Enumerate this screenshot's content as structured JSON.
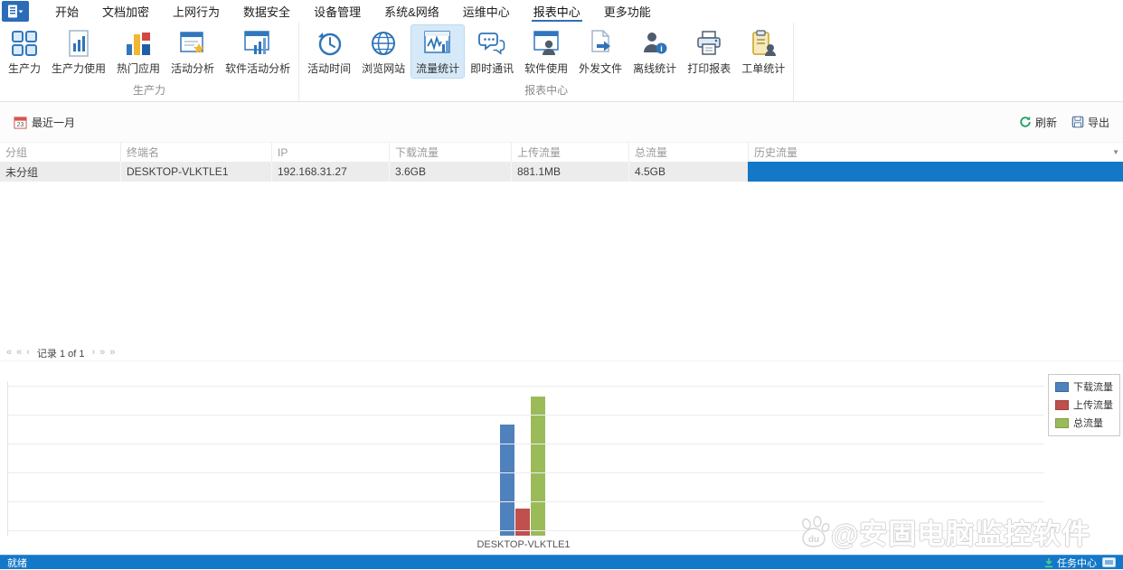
{
  "menubar": {
    "tabs": [
      "开始",
      "文档加密",
      "上网行为",
      "数据安全",
      "设备管理",
      "系统&网络",
      "运维中心",
      "报表中心",
      "更多功能"
    ],
    "active_tab": "报表中心"
  },
  "ribbon": {
    "groups": [
      {
        "label": "生产力",
        "buttons": [
          "生产力",
          "生产力使用",
          "热门应用",
          "活动分析",
          "软件活动分析"
        ]
      },
      {
        "label": "报表中心",
        "buttons": [
          "活动时间",
          "浏览网站",
          "流量统计",
          "即时通讯",
          "软件使用",
          "外发文件",
          "离线统计",
          "打印报表",
          "工单统计"
        ],
        "active_button": "流量统计"
      }
    ]
  },
  "toolbar": {
    "date_filter": "最近一月",
    "calendar_day": "23",
    "refresh_label": "刷新",
    "export_label": "导出"
  },
  "table": {
    "columns": [
      "分组",
      "终端名",
      "IP",
      "下载流量",
      "上传流量",
      "总流量",
      "历史流量"
    ],
    "rows": [
      [
        "未分组",
        "DESKTOP-VLKTLE1",
        "192.168.31.27",
        "3.6GB",
        "881.1MB",
        "4.5GB",
        ""
      ]
    ]
  },
  "pagination": {
    "record_label": "记录 1 of 1"
  },
  "chart_data": {
    "type": "bar",
    "categories": [
      "DESKTOP-VLKTLE1"
    ],
    "series": [
      {
        "name": "下载流量",
        "values": [
          3.6
        ],
        "color": "#4f81bd"
      },
      {
        "name": "上传流量",
        "values": [
          0.881
        ],
        "color": "#c0504d"
      },
      {
        "name": "总流量",
        "values": [
          4.5
        ],
        "color": "#9bbb59"
      }
    ],
    "unit": "GB",
    "xlabel": "",
    "ylabel": "",
    "ylim": [
      0,
      5
    ],
    "grid": true,
    "legend_position": "top-right"
  },
  "statusbar": {
    "ready": "就绪",
    "task_center": "任务中心"
  },
  "watermark": {
    "text": "@安固电脑监控软件",
    "logo_text": "du"
  },
  "colors": {
    "accent": "#1478c8",
    "history_bar": "#1478c8",
    "active_tab_underline": "#2f6eb5",
    "refresh_green": "#1aa05c"
  }
}
